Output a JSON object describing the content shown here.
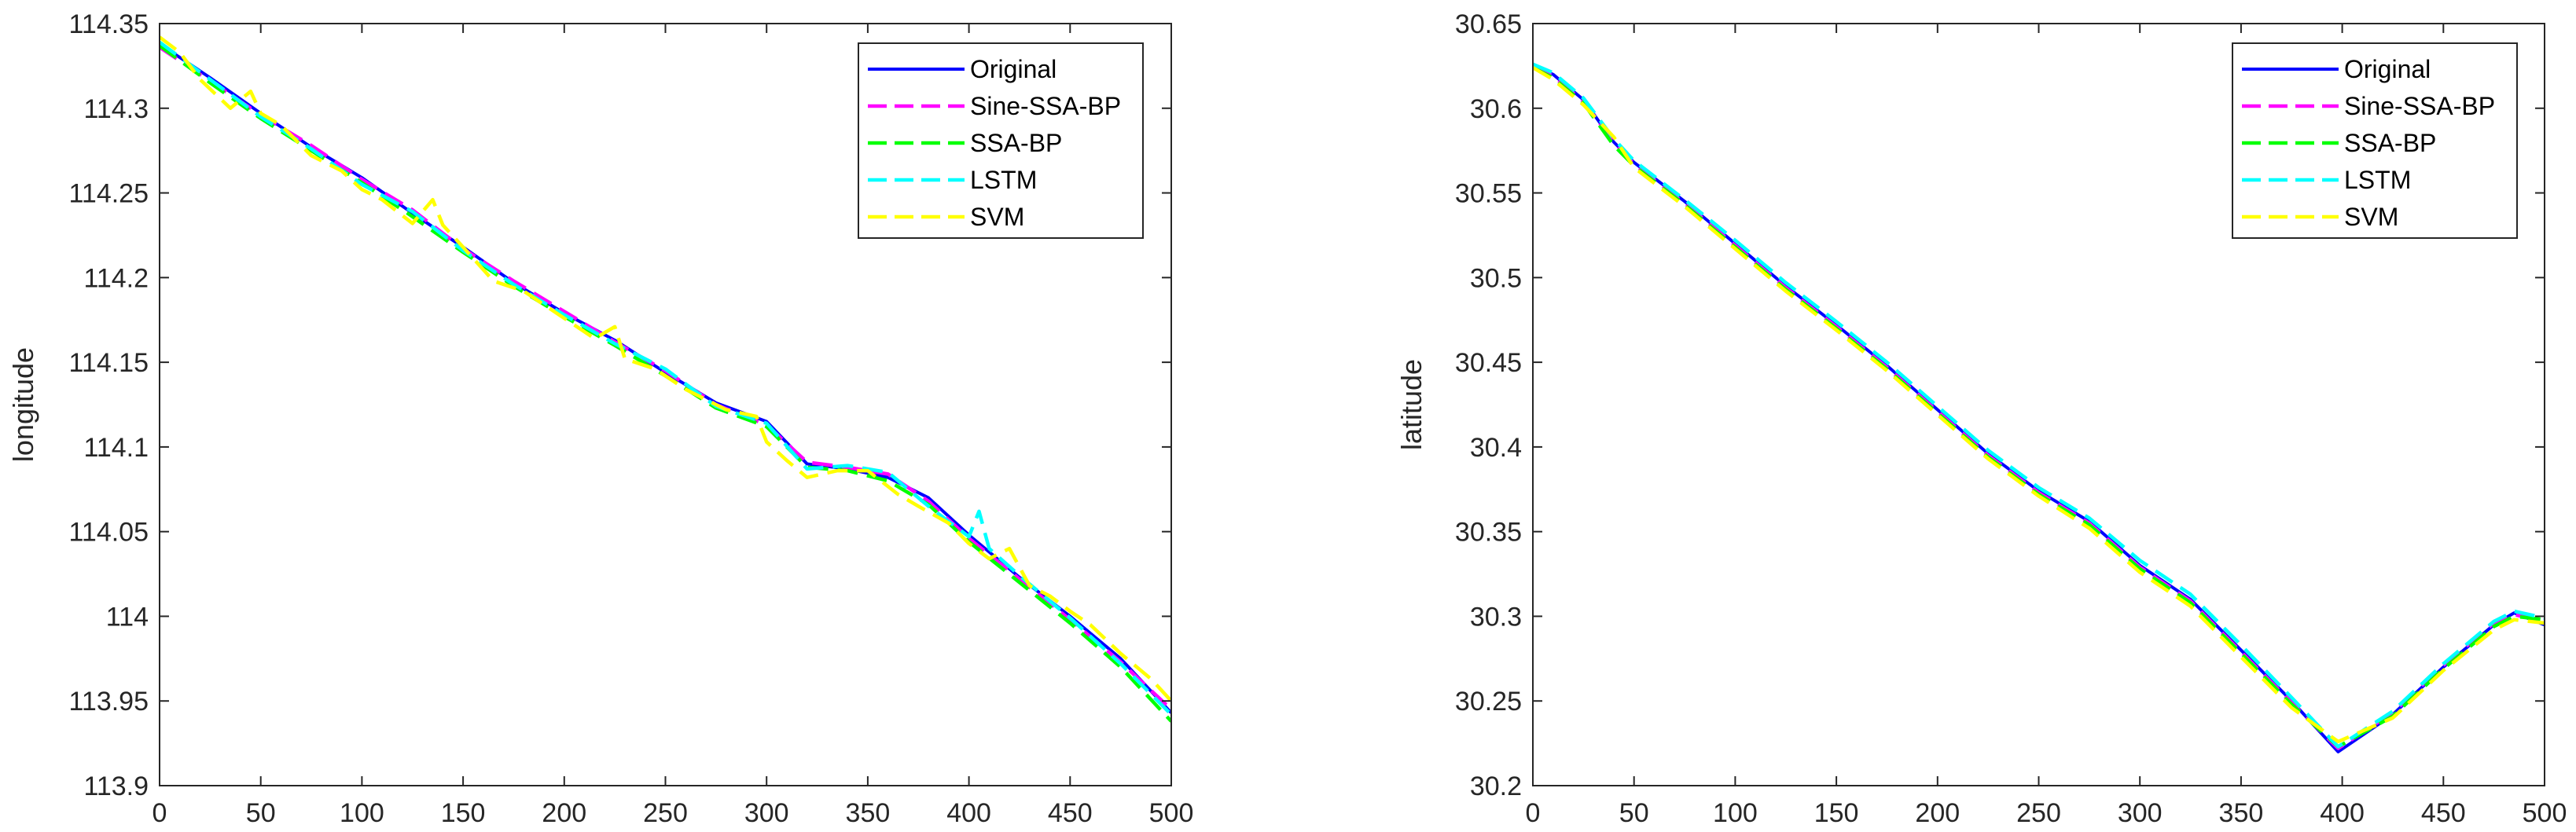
{
  "chart_data": [
    {
      "type": "line",
      "title": "",
      "xlabel": "",
      "ylabel": "longitude",
      "xlim": [
        0,
        500
      ],
      "ylim": [
        113.9,
        114.35
      ],
      "xticks": [
        0,
        50,
        100,
        150,
        200,
        250,
        300,
        350,
        400,
        450,
        500
      ],
      "xtick_labels": [
        "0",
        "50",
        "100",
        "150",
        "200",
        "250",
        "300",
        "350",
        "400",
        "450",
        "500"
      ],
      "yticks": [
        113.9,
        113.95,
        114.0,
        114.05,
        114.1,
        114.15,
        114.2,
        114.25,
        114.3,
        114.35
      ],
      "ytick_labels": [
        "113.9",
        "113.95",
        "114",
        "114.05",
        "114.1",
        "114.15",
        "114.2",
        "114.25",
        "114.3",
        "114.35"
      ],
      "grid": false,
      "legend_position": "top-right",
      "series": [
        {
          "name": "Original",
          "color": "#0000ff",
          "dash": "solid",
          "x": [
            0,
            25,
            50,
            75,
            100,
            125,
            150,
            175,
            200,
            225,
            250,
            275,
            300,
            320,
            340,
            360,
            380,
            400,
            425,
            450,
            475,
            500
          ],
          "y": [
            114.338,
            114.318,
            114.297,
            114.277,
            114.259,
            114.238,
            114.218,
            114.197,
            114.179,
            114.163,
            114.144,
            114.126,
            114.115,
            114.09,
            114.087,
            114.082,
            114.07,
            114.048,
            114.023,
            114.0,
            113.975,
            113.943
          ]
        },
        {
          "name": "Sine-SSA-BP",
          "color": "#ff00ff",
          "dash": "dashed",
          "x": [
            0,
            25,
            50,
            75,
            100,
            125,
            150,
            175,
            200,
            225,
            250,
            275,
            300,
            320,
            340,
            360,
            380,
            400,
            425,
            450,
            475,
            500
          ],
          "y": [
            114.336,
            114.316,
            114.296,
            114.278,
            114.258,
            114.24,
            114.217,
            114.198,
            114.18,
            114.162,
            114.145,
            114.125,
            114.113,
            114.091,
            114.088,
            114.084,
            114.068,
            114.046,
            114.022,
            113.998,
            113.973,
            113.945
          ]
        },
        {
          "name": "SSA-BP",
          "color": "#00ff00",
          "dash": "dashed",
          "x": [
            0,
            25,
            50,
            75,
            100,
            125,
            150,
            175,
            200,
            225,
            250,
            275,
            300,
            320,
            340,
            360,
            380,
            400,
            425,
            450,
            475,
            500
          ],
          "y": [
            114.337,
            114.315,
            114.294,
            114.275,
            114.256,
            114.236,
            114.215,
            114.195,
            114.177,
            114.16,
            114.142,
            114.123,
            114.112,
            114.088,
            114.086,
            114.08,
            114.066,
            114.044,
            114.02,
            113.996,
            113.97,
            113.938
          ]
        },
        {
          "name": "LSTM",
          "color": "#00ffff",
          "dash": "dashed",
          "x": [
            0,
            25,
            50,
            75,
            100,
            125,
            150,
            175,
            200,
            225,
            250,
            275,
            300,
            320,
            340,
            360,
            380,
            400,
            405,
            410,
            425,
            450,
            475,
            500
          ],
          "y": [
            114.339,
            114.317,
            114.295,
            114.276,
            114.255,
            114.239,
            114.216,
            114.196,
            114.178,
            114.161,
            114.146,
            114.124,
            114.114,
            114.087,
            114.089,
            114.085,
            114.065,
            114.047,
            114.062,
            114.04,
            114.024,
            113.999,
            113.972,
            113.942
          ]
        },
        {
          "name": "SVM",
          "color": "#ffff00",
          "dash": "dashed",
          "x": [
            0,
            10,
            20,
            35,
            45,
            50,
            60,
            75,
            90,
            100,
            110,
            125,
            135,
            140,
            150,
            165,
            180,
            200,
            215,
            225,
            230,
            245,
            260,
            280,
            295,
            300,
            310,
            320,
            335,
            350,
            365,
            375,
            390,
            400,
            410,
            420,
            430,
            440,
            450,
            460,
            475,
            490,
            500
          ],
          "y": [
            114.342,
            114.333,
            114.317,
            114.3,
            114.31,
            114.297,
            114.29,
            114.272,
            114.263,
            114.252,
            114.246,
            114.232,
            114.246,
            114.231,
            114.218,
            114.198,
            114.192,
            114.176,
            114.164,
            114.171,
            114.152,
            114.146,
            114.134,
            114.122,
            114.118,
            114.103,
            114.092,
            114.082,
            114.086,
            114.086,
            114.072,
            114.065,
            114.055,
            114.043,
            114.034,
            114.04,
            114.018,
            114.012,
            114.003,
            113.995,
            113.978,
            113.963,
            113.95
          ]
        }
      ]
    },
    {
      "type": "line",
      "title": "",
      "xlabel": "",
      "ylabel": "latitude",
      "xlim": [
        0,
        500
      ],
      "ylim": [
        30.2,
        30.65
      ],
      "xticks": [
        0,
        50,
        100,
        150,
        200,
        250,
        300,
        350,
        400,
        450,
        500
      ],
      "xtick_labels": [
        "0",
        "50",
        "100",
        "150",
        "200",
        "250",
        "300",
        "350",
        "400",
        "450",
        "500"
      ],
      "yticks": [
        30.2,
        30.25,
        30.3,
        30.35,
        30.4,
        30.45,
        30.5,
        30.55,
        30.6,
        30.65
      ],
      "ytick_labels": [
        "30.2",
        "30.25",
        "30.3",
        "30.35",
        "30.4",
        "30.45",
        "30.5",
        "30.55",
        "30.6",
        "30.65"
      ],
      "grid": false,
      "legend_position": "top-right",
      "series": [
        {
          "name": "Original",
          "color": "#0000ff",
          "dash": "solid",
          "x": [
            0,
            10,
            25,
            40,
            50,
            75,
            100,
            125,
            150,
            175,
            200,
            225,
            250,
            275,
            300,
            325,
            350,
            375,
            398,
            425,
            450,
            475,
            485,
            500
          ],
          "y": [
            30.625,
            30.62,
            30.605,
            30.58,
            30.568,
            30.545,
            30.52,
            30.495,
            30.472,
            30.448,
            30.422,
            30.396,
            30.374,
            30.356,
            30.33,
            30.31,
            30.28,
            30.25,
            30.22,
            30.242,
            30.27,
            30.295,
            30.302,
            30.295
          ]
        },
        {
          "name": "Sine-SSA-BP",
          "color": "#ff00ff",
          "dash": "dashed",
          "x": [
            0,
            10,
            25,
            40,
            50,
            75,
            100,
            125,
            150,
            175,
            200,
            225,
            250,
            275,
            300,
            325,
            350,
            375,
            398,
            425,
            450,
            475,
            485,
            500
          ],
          "y": [
            30.625,
            30.619,
            30.604,
            30.58,
            30.567,
            30.544,
            30.519,
            30.494,
            30.471,
            30.447,
            30.421,
            30.395,
            30.373,
            30.355,
            30.329,
            30.309,
            30.279,
            30.249,
            30.222,
            30.243,
            30.271,
            30.296,
            30.301,
            30.297
          ]
        },
        {
          "name": "SSA-BP",
          "color": "#00ff00",
          "dash": "dashed",
          "x": [
            0,
            10,
            25,
            40,
            50,
            75,
            100,
            125,
            150,
            175,
            200,
            225,
            250,
            275,
            300,
            325,
            350,
            375,
            398,
            425,
            450,
            475,
            485,
            500
          ],
          "y": [
            30.624,
            30.618,
            30.603,
            30.578,
            30.566,
            30.543,
            30.518,
            30.493,
            30.47,
            30.446,
            30.42,
            30.394,
            30.372,
            30.354,
            30.328,
            30.308,
            30.278,
            30.248,
            30.223,
            30.241,
            30.269,
            30.294,
            30.3,
            30.298
          ]
        },
        {
          "name": "LSTM",
          "color": "#00ffff",
          "dash": "dashed",
          "x": [
            0,
            10,
            25,
            40,
            50,
            75,
            100,
            125,
            150,
            175,
            200,
            225,
            250,
            275,
            300,
            325,
            350,
            375,
            398,
            425,
            450,
            475,
            485,
            500
          ],
          "y": [
            30.626,
            30.621,
            30.606,
            30.582,
            30.569,
            30.546,
            30.522,
            30.497,
            30.474,
            30.45,
            30.424,
            30.398,
            30.376,
            30.358,
            30.333,
            30.313,
            30.283,
            30.252,
            30.223,
            30.244,
            30.272,
            30.297,
            30.303,
            30.299
          ]
        },
        {
          "name": "SVM",
          "color": "#ffff00",
          "dash": "dashed",
          "x": [
            0,
            10,
            25,
            40,
            50,
            75,
            100,
            125,
            150,
            175,
            200,
            225,
            250,
            275,
            300,
            325,
            350,
            375,
            398,
            425,
            450,
            475,
            485,
            500
          ],
          "y": [
            30.624,
            30.617,
            30.602,
            30.583,
            30.565,
            30.542,
            30.517,
            30.492,
            30.469,
            30.445,
            30.419,
            30.393,
            30.371,
            30.352,
            30.326,
            30.306,
            30.276,
            30.246,
            30.226,
            30.24,
            30.268,
            30.292,
            30.298,
            30.296
          ]
        }
      ]
    }
  ]
}
